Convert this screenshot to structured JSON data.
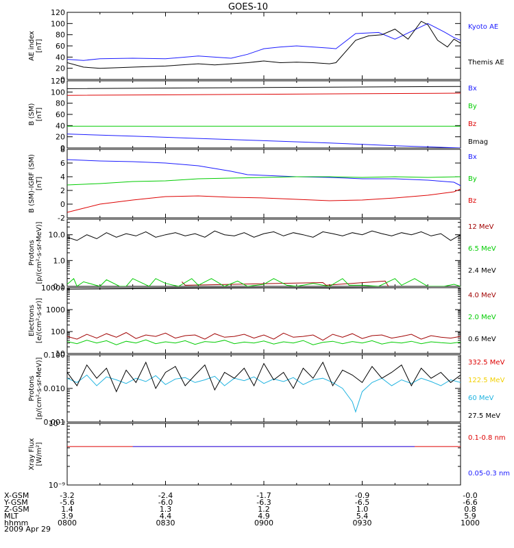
{
  "title": "GOES-10",
  "colors": {
    "black": "#000000",
    "blue": "#1a1aff",
    "red": "#dd0000",
    "green": "#00cc00",
    "cyan": "#1fb3e0",
    "yellow": "#f2d000",
    "darkred": "#a00000"
  },
  "chart_data": [
    {
      "type": "line",
      "ylabel": "AE index\n[nT]",
      "yscale": "linear",
      "ylim": [
        0,
        120
      ],
      "yticks": [
        "0",
        "20",
        "40",
        "60",
        "80",
        "100",
        "120"
      ],
      "xlim": [
        0,
        120
      ],
      "series": [
        {
          "name": "Kyoto AE",
          "color": "blue",
          "x": [
            0,
            5,
            10,
            20,
            30,
            40,
            50,
            55,
            60,
            65,
            70,
            75,
            80,
            82,
            88,
            95,
            100,
            105,
            110,
            115,
            118,
            120
          ],
          "y": [
            36,
            34,
            37,
            38,
            37,
            42,
            38,
            45,
            55,
            58,
            60,
            58,
            56,
            55,
            82,
            84,
            72,
            86,
            100,
            85,
            75,
            70
          ]
        },
        {
          "name": "Themis AE",
          "color": "black",
          "x": [
            0,
            5,
            10,
            20,
            30,
            40,
            45,
            50,
            55,
            60,
            65,
            70,
            75,
            80,
            82,
            88,
            92,
            96,
            100,
            104,
            108,
            110,
            113,
            116,
            118,
            120
          ],
          "y": [
            30,
            22,
            20,
            22,
            24,
            28,
            26,
            28,
            30,
            33,
            30,
            31,
            30,
            28,
            30,
            70,
            78,
            80,
            90,
            72,
            104,
            98,
            70,
            58,
            72,
            65
          ]
        }
      ]
    },
    {
      "type": "line",
      "ylabel": "B (SM)\n[nT]",
      "yscale": "linear",
      "ylim": [
        0,
        120
      ],
      "yticks": [
        "0",
        "20",
        "40",
        "60",
        "80",
        "100",
        "120"
      ],
      "xlim": [
        0,
        120
      ],
      "series": [
        {
          "name": "Bx",
          "color": "blue",
          "x": [
            0,
            20,
            40,
            60,
            80,
            100,
            120
          ],
          "y": [
            25,
            21,
            17,
            13,
            9,
            4,
            0
          ]
        },
        {
          "name": "By",
          "color": "green",
          "x": [
            0,
            60,
            120
          ],
          "y": [
            39,
            39,
            39
          ]
        },
        {
          "name": "Bz",
          "color": "red",
          "x": [
            0,
            60,
            120
          ],
          "y": [
            94,
            96,
            98
          ]
        },
        {
          "name": "Bmag",
          "color": "black",
          "x": [
            0,
            60,
            120
          ],
          "y": [
            106,
            108,
            110
          ]
        }
      ]
    },
    {
      "type": "line",
      "ylabel": "B (SM)-IGRF (SM)\n[nT]",
      "yscale": "linear",
      "ylim": [
        -2,
        8
      ],
      "yticks": [
        "-2",
        "0",
        "2",
        "4",
        "6",
        "8"
      ],
      "xlim": [
        0,
        120
      ],
      "series": [
        {
          "name": "Bx",
          "color": "blue",
          "x": [
            0,
            10,
            20,
            30,
            40,
            50,
            55,
            60,
            70,
            80,
            90,
            100,
            110,
            118,
            120
          ],
          "y": [
            6.5,
            6.3,
            6.2,
            6.0,
            5.6,
            4.8,
            4.3,
            4.2,
            4.0,
            3.9,
            3.7,
            3.7,
            3.5,
            3.2,
            2.7
          ]
        },
        {
          "name": "By",
          "color": "green",
          "x": [
            0,
            10,
            20,
            30,
            40,
            50,
            60,
            70,
            80,
            90,
            100,
            110,
            120
          ],
          "y": [
            2.8,
            3.0,
            3.3,
            3.4,
            3.7,
            3.8,
            3.9,
            4.0,
            4.0,
            3.9,
            4.0,
            3.9,
            4.0
          ]
        },
        {
          "name": "Bz",
          "color": "red",
          "x": [
            0,
            5,
            10,
            20,
            30,
            40,
            50,
            60,
            70,
            80,
            90,
            100,
            110,
            118,
            120
          ],
          "y": [
            -1.2,
            -0.6,
            0.0,
            0.6,
            1.1,
            1.2,
            1.0,
            0.9,
            0.7,
            0.5,
            0.6,
            0.9,
            1.3,
            1.8,
            2.2
          ]
        }
      ]
    },
    {
      "type": "line",
      "ylabel": "Protons\n[p/(cm²-s-sr-MeV)]",
      "yscale": "log",
      "ylim": [
        0.1,
        40
      ],
      "yticks": [
        "0.1",
        "1.0",
        "10.0"
      ],
      "xlim": [
        0,
        120
      ],
      "series": [
        {
          "name": "12 MeV",
          "color": "darkred",
          "x": [
            35,
            36,
            78,
            79,
            97,
            98
          ],
          "y": [
            0.15,
            0.11,
            0.14,
            0.11,
            0.16,
            0.1
          ]
        },
        {
          "name": "6.5 MeV",
          "color": "green",
          "x": [
            0,
            2,
            3,
            5,
            10,
            12,
            16,
            18,
            20,
            25,
            27,
            30,
            34,
            38,
            40,
            44,
            48,
            52,
            55,
            60,
            63,
            67,
            70,
            75,
            80,
            84,
            86,
            90,
            95,
            100,
            102,
            106,
            110,
            115,
            118,
            120
          ],
          "y": [
            0.12,
            0.2,
            0.1,
            0.15,
            0.1,
            0.18,
            0.1,
            0.1,
            0.2,
            0.1,
            0.2,
            0.13,
            0.1,
            0.2,
            0.11,
            0.2,
            0.1,
            0.16,
            0.1,
            0.12,
            0.2,
            0.11,
            0.1,
            0.13,
            0.1,
            0.2,
            0.11,
            0.11,
            0.1,
            0.2,
            0.11,
            0.2,
            0.1,
            0.1,
            0.12,
            0.1
          ]
        },
        {
          "name": "2.4 MeV",
          "color": "black",
          "x": [
            0,
            3,
            6,
            9,
            12,
            15,
            18,
            21,
            24,
            27,
            30,
            33,
            36,
            39,
            42,
            45,
            48,
            51,
            54,
            57,
            60,
            63,
            66,
            69,
            72,
            75,
            78,
            81,
            84,
            87,
            90,
            93,
            96,
            99,
            102,
            105,
            108,
            111,
            114,
            117,
            120
          ],
          "y": [
            8,
            6,
            10,
            7,
            12,
            8,
            11,
            9,
            13,
            8,
            10,
            12,
            9,
            11,
            8,
            14,
            10,
            9,
            12,
            8,
            11,
            13,
            9,
            12,
            10,
            8,
            13,
            11,
            9,
            12,
            10,
            14,
            11,
            9,
            12,
            10,
            13,
            9,
            11,
            6,
            10
          ]
        }
      ]
    },
    {
      "type": "line",
      "ylabel": "Electrons\n[e/(cm²-s-sr)]",
      "yscale": "log",
      "ylim": [
        10,
        10000
      ],
      "yticks": [
        "10",
        "100",
        "1000",
        "10000"
      ],
      "xlim": [
        0,
        120
      ],
      "series": [
        {
          "name": "4.0 MeV",
          "color": "darkred",
          "x": [
            0,
            3,
            6,
            9,
            12,
            15,
            18,
            21,
            24,
            27,
            30,
            33,
            36,
            39,
            42,
            45,
            48,
            51,
            54,
            57,
            60,
            63,
            66,
            69,
            72,
            75,
            78,
            81,
            84,
            87,
            90,
            93,
            96,
            99,
            102,
            105,
            108,
            111,
            114,
            117,
            120
          ],
          "y": [
            60,
            45,
            75,
            50,
            80,
            55,
            90,
            48,
            70,
            60,
            85,
            50,
            65,
            70,
            45,
            80,
            55,
            60,
            75,
            50,
            70,
            45,
            85,
            55,
            60,
            70,
            40,
            75,
            55,
            80,
            48,
            65,
            70,
            50,
            60,
            75,
            45,
            65,
            55,
            50,
            60
          ]
        },
        {
          "name": "2.0 MeV",
          "color": "green",
          "x": [
            0,
            3,
            6,
            9,
            12,
            15,
            18,
            21,
            24,
            27,
            30,
            33,
            36,
            39,
            42,
            45,
            48,
            51,
            54,
            57,
            60,
            63,
            66,
            69,
            72,
            75,
            78,
            81,
            84,
            87,
            90,
            93,
            96,
            99,
            102,
            105,
            108,
            111,
            114,
            117,
            120
          ],
          "y": [
            35,
            28,
            40,
            30,
            38,
            25,
            36,
            30,
            42,
            28,
            34,
            30,
            38,
            26,
            35,
            32,
            40,
            28,
            33,
            30,
            37,
            27,
            34,
            30,
            39,
            25,
            32,
            36,
            28,
            35,
            30,
            38,
            27,
            33,
            30,
            36,
            28,
            34,
            31,
            29,
            33
          ]
        },
        {
          "name": "0.6 MeV",
          "color": "black",
          "x": [
            0,
            20,
            40,
            60,
            80,
            100,
            120
          ],
          "y": [
            8500,
            9000,
            9500,
            9800,
            9600,
            9900,
            10000
          ]
        }
      ]
    },
    {
      "type": "line",
      "ylabel": "Protons\n[p/(cm²-s-sr-MeV)]",
      "yscale": "log",
      "ylim": [
        0.001,
        0.1
      ],
      "yticks": [
        "0.001",
        "0.010",
        "0.100"
      ],
      "xlim": [
        0,
        120
      ],
      "series": [
        {
          "name": "332.5 MeV",
          "color": "red",
          "x": [],
          "y": []
        },
        {
          "name": "122.5 MeV",
          "color": "yellow",
          "x": [],
          "y": []
        },
        {
          "name": "60 MeV",
          "color": "cyan",
          "x": [
            0,
            3,
            6,
            9,
            12,
            15,
            18,
            21,
            24,
            27,
            30,
            33,
            36,
            39,
            42,
            45,
            48,
            51,
            54,
            57,
            60,
            63,
            66,
            69,
            72,
            75,
            78,
            81,
            84,
            87,
            88,
            90,
            93,
            96,
            99,
            102,
            105,
            108,
            111,
            114,
            117,
            120
          ],
          "y": [
            0.02,
            0.015,
            0.025,
            0.012,
            0.022,
            0.018,
            0.014,
            0.02,
            0.016,
            0.024,
            0.013,
            0.019,
            0.021,
            0.015,
            0.018,
            0.023,
            0.012,
            0.02,
            0.017,
            0.022,
            0.014,
            0.019,
            0.016,
            0.021,
            0.013,
            0.018,
            0.02,
            0.015,
            0.01,
            0.004,
            0.002,
            0.008,
            0.015,
            0.02,
            0.012,
            0.018,
            0.014,
            0.02,
            0.016,
            0.012,
            0.018,
            0.015
          ]
        },
        {
          "name": "27.5 MeV",
          "color": "black",
          "x": [
            0,
            3,
            6,
            9,
            12,
            15,
            18,
            21,
            24,
            27,
            30,
            33,
            36,
            39,
            42,
            45,
            48,
            51,
            54,
            57,
            60,
            63,
            66,
            69,
            72,
            75,
            78,
            81,
            84,
            87,
            90,
            93,
            96,
            99,
            102,
            105,
            108,
            111,
            114,
            117,
            120
          ],
          "y": [
            0.03,
            0.012,
            0.05,
            0.02,
            0.04,
            0.008,
            0.035,
            0.015,
            0.06,
            0.01,
            0.03,
            0.045,
            0.012,
            0.025,
            0.05,
            0.009,
            0.03,
            0.02,
            0.04,
            0.012,
            0.055,
            0.018,
            0.03,
            0.01,
            0.04,
            0.02,
            0.06,
            0.012,
            0.035,
            0.025,
            0.015,
            0.045,
            0.02,
            0.03,
            0.05,
            0.012,
            0.04,
            0.02,
            0.03,
            0.015,
            0.025
          ]
        }
      ]
    },
    {
      "type": "line",
      "ylabel": "Xray Flux\n[W/m²]",
      "yscale": "log",
      "ylim": [
        1e-09,
        1e-08
      ],
      "yticks": [
        "10⁻⁹",
        "10⁻⁸"
      ],
      "xlim": [
        0,
        120
      ],
      "series": [
        {
          "name": "0.1-0.8 nm",
          "color": "red",
          "x": [
            0,
            120
          ],
          "y": [
            4.2e-09,
            4.2e-09
          ]
        },
        {
          "name": "0.05-0.3 nm",
          "color": "blue",
          "x": [
            20,
            22,
            60,
            62,
            80,
            83,
            92,
            95,
            104,
            106
          ],
          "y": [
            4.2e-09,
            4.2e-09,
            4.2e-09,
            4.2e-09,
            4.2e-09,
            4.2e-09,
            4.2e-09,
            4.2e-09,
            4.2e-09,
            4.2e-09
          ]
        }
      ]
    }
  ],
  "footer": {
    "rows": [
      {
        "label": "X-GSM",
        "values": [
          "-3.2",
          "-2.4",
          "-1.7",
          "-0.9",
          "-0.0"
        ]
      },
      {
        "label": "Y-GSM",
        "values": [
          "-5.6",
          "-6.0",
          "-6.3",
          "-6.5",
          "-6.6"
        ]
      },
      {
        "label": "Z-GSM",
        "values": [
          "1.4",
          "1.3",
          "1.2",
          "1.0",
          "0.8"
        ]
      },
      {
        "label": "MLT",
        "values": [
          "3.9",
          "4.4",
          "4.9",
          "5.4",
          "5.9"
        ]
      },
      {
        "label": "hhmm",
        "values": [
          "0800",
          "0830",
          "0900",
          "0930",
          "1000"
        ]
      }
    ],
    "date": "2009 Apr 29"
  }
}
